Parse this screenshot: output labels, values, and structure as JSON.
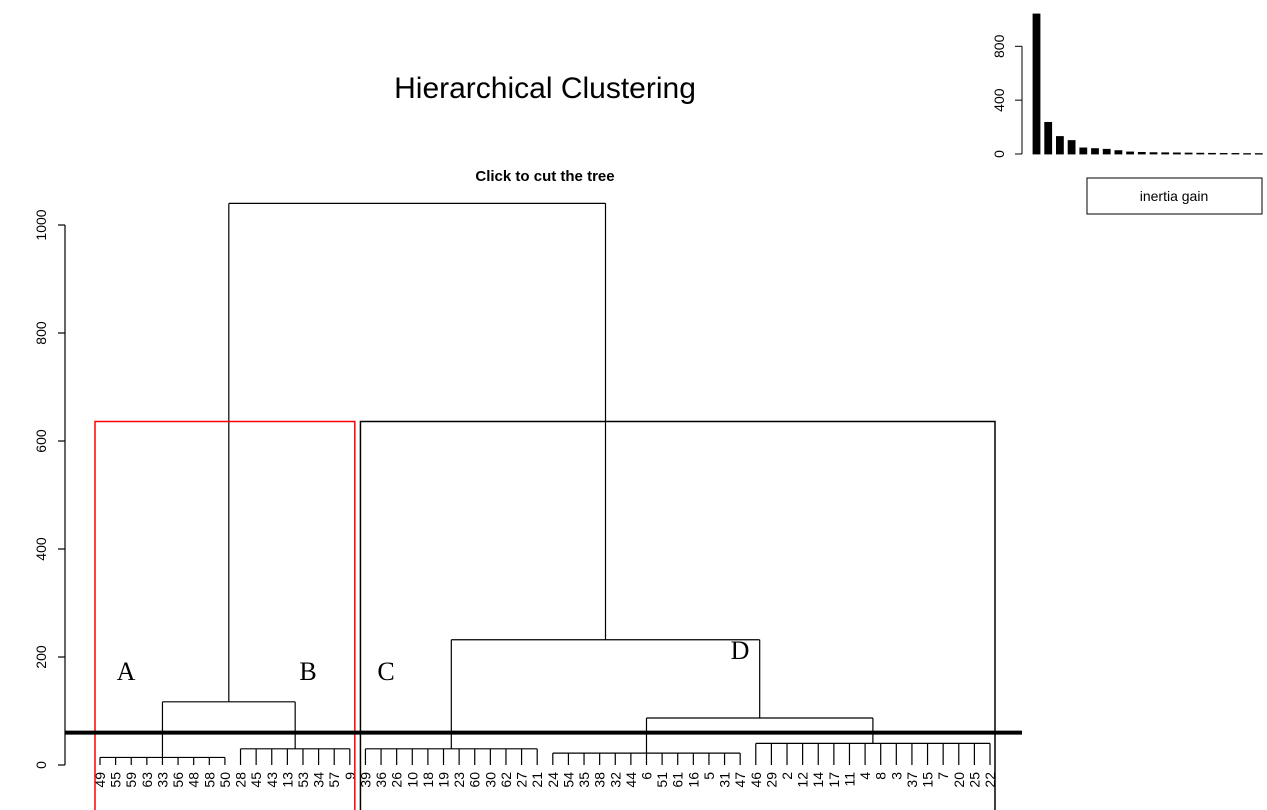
{
  "chart_data": [
    {
      "type": "dendrogram",
      "title": "Hierarchical Clustering",
      "subtitle": "Click to cut the tree",
      "ylim": [
        0,
        1080
      ],
      "yticks": [
        0,
        200,
        400,
        600,
        800,
        1000
      ],
      "clusters": [
        {
          "leaves": [
            "49",
            "55",
            "59",
            "63",
            "33",
            "56",
            "48",
            "58",
            "50"
          ],
          "height": 14
        },
        {
          "leaves": [
            "28",
            "45",
            "43",
            "13",
            "53",
            "34",
            "57",
            "9"
          ],
          "height": 30
        },
        {
          "leaves": [
            "39",
            "36",
            "26",
            "10",
            "18",
            "19",
            "23",
            "60",
            "30",
            "62",
            "27",
            "21"
          ],
          "height": 30
        },
        {
          "leaves": [
            "24",
            "54",
            "35",
            "38",
            "32",
            "44",
            "6",
            "51",
            "61",
            "16",
            "5",
            "31",
            "47"
          ],
          "height": 22
        },
        {
          "leaves": [
            "46",
            "29",
            "2",
            "12",
            "14",
            "17",
            "11",
            "4",
            "8",
            "3",
            "37",
            "15",
            "7",
            "20",
            "25",
            "22"
          ],
          "height": 40
        }
      ],
      "merges": [
        {
          "children": [
            -1,
            -2
          ],
          "height": 117
        },
        {
          "children": [
            -4,
            -5
          ],
          "height": 87
        },
        {
          "children": [
            -3,
            2
          ],
          "height": 232
        },
        {
          "children": [
            1,
            3
          ],
          "height": 1040
        }
      ],
      "cut_height": 60,
      "box_height": 636,
      "boxes": [
        {
          "clusters": [
            0,
            1
          ],
          "color": "#ff0000"
        },
        {
          "clusters": [
            2,
            3,
            4
          ],
          "color": "#000000"
        }
      ],
      "annotations": [
        "A",
        "B",
        "C",
        "D"
      ]
    },
    {
      "type": "bar",
      "legend": "inertia gain",
      "color": "#000000",
      "values": [
        1040,
        235,
        130,
        100,
        45,
        40,
        35,
        25,
        15,
        12,
        10,
        9,
        8,
        7,
        6,
        5,
        4,
        4,
        3,
        3
      ],
      "ylim": [
        0,
        1040
      ],
      "yticks": [
        0,
        400,
        800
      ]
    }
  ]
}
